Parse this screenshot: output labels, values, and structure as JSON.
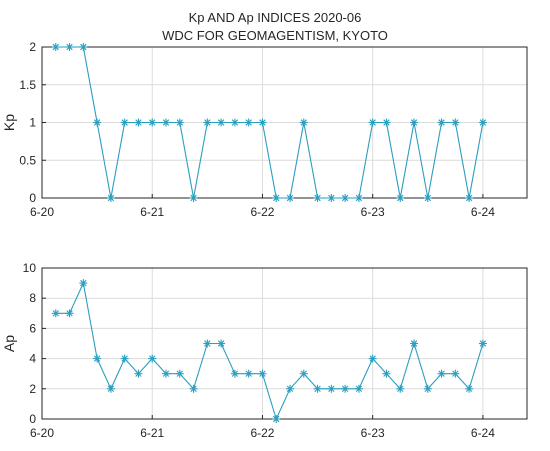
{
  "chart_data": {
    "title_line1": "Kp AND Ap INDICES 2020-06",
    "title_line2": "WDC FOR GEOMAGENTISM, KYOTO",
    "line_color": "#2a9fbf",
    "grid": true,
    "x_tick_labels": [
      "6-20",
      "6-21",
      "6-22",
      "6-23",
      "6-24"
    ],
    "x_range_days": [
      0,
      4.4
    ],
    "panels": [
      {
        "type": "line",
        "ylabel": "Kp",
        "ylim": [
          0,
          2
        ],
        "y_tick_labels": [
          "0",
          "0.5",
          "1",
          "1.5",
          "2"
        ],
        "y_tick_values": [
          0,
          0.5,
          1,
          1.5,
          2
        ],
        "values": [
          2,
          2,
          2,
          1,
          0,
          1,
          1,
          1,
          1,
          1,
          0,
          1,
          1,
          1,
          1,
          1,
          0,
          0,
          1,
          0,
          0,
          0,
          0,
          1,
          1,
          0,
          1,
          0,
          1,
          1,
          0,
          1
        ]
      },
      {
        "type": "line",
        "ylabel": "Ap",
        "ylim": [
          0,
          10
        ],
        "y_tick_labels": [
          "0",
          "2",
          "4",
          "6",
          "8",
          "10"
        ],
        "y_tick_values": [
          0,
          2,
          4,
          6,
          8,
          10
        ],
        "values": [
          7,
          7,
          9,
          4,
          2,
          4,
          3,
          4,
          3,
          3,
          2,
          5,
          5,
          3,
          3,
          3,
          0,
          2,
          3,
          2,
          2,
          2,
          2,
          4,
          3,
          2,
          5,
          2,
          3,
          3,
          2,
          5
        ]
      }
    ]
  }
}
